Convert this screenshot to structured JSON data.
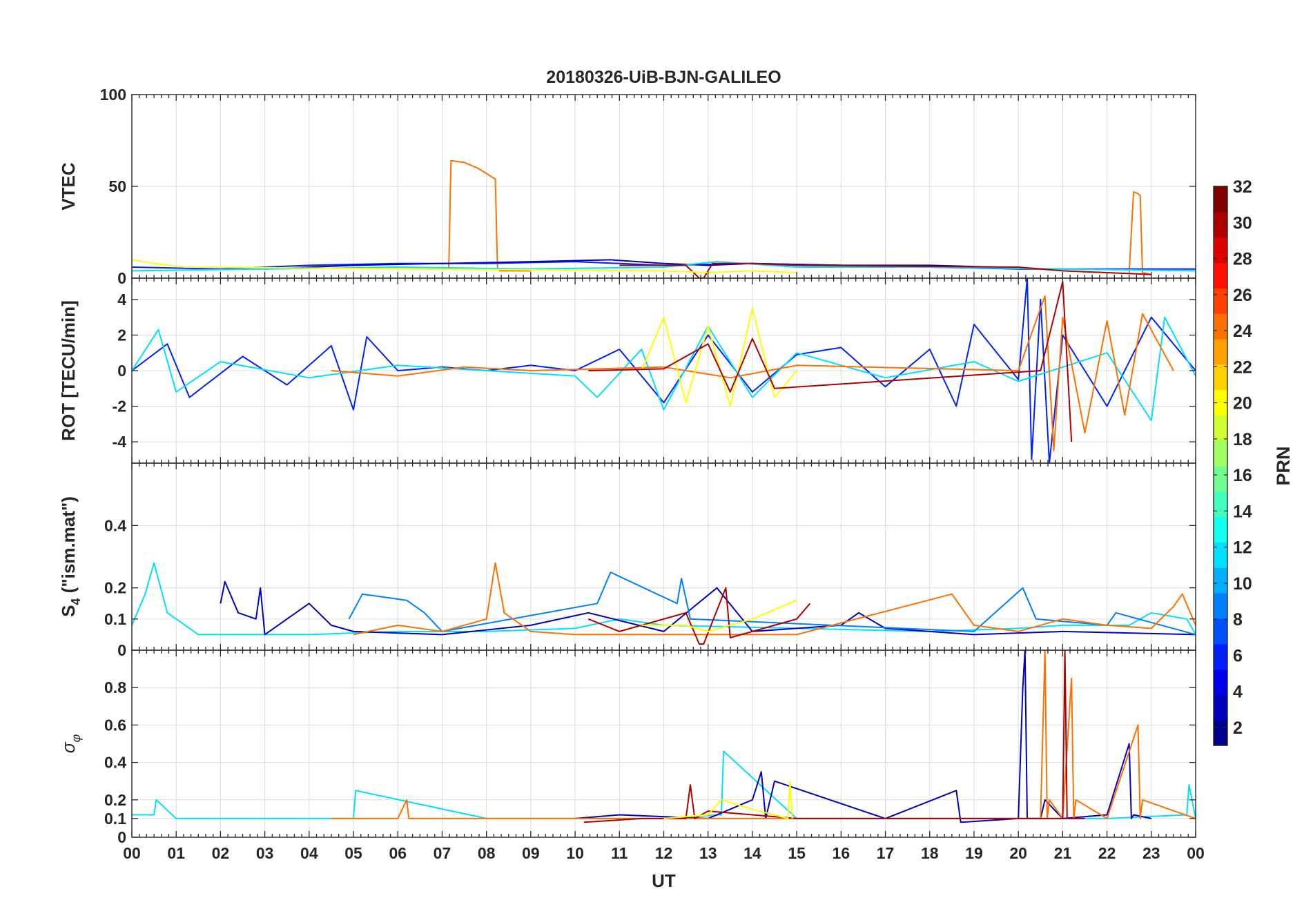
{
  "chart_data": {
    "type": "line",
    "title": "20180326-UiB-BJN-GALILEO",
    "xlabel": "UT",
    "x_ticks": [
      "00",
      "01",
      "02",
      "03",
      "04",
      "05",
      "06",
      "07",
      "08",
      "09",
      "10",
      "11",
      "12",
      "13",
      "14",
      "15",
      "16",
      "17",
      "18",
      "19",
      "20",
      "21",
      "22",
      "23",
      "00"
    ],
    "xlim": [
      0,
      24
    ],
    "colorbar": {
      "label": "PRN",
      "range": [
        1,
        32
      ],
      "ticks": [
        "2",
        "4",
        "6",
        "8",
        "10",
        "12",
        "14",
        "16",
        "18",
        "20",
        "22",
        "24",
        "26",
        "28",
        "30",
        "32"
      ],
      "colors": [
        "#00008f",
        "#0000bf",
        "#0000ef",
        "#0020ff",
        "#0050ff",
        "#0080ff",
        "#00afff",
        "#00dfff",
        "#10ffef",
        "#40ffbf",
        "#70ff8f",
        "#9fff60",
        "#cfff30",
        "#ffff00",
        "#ffcf00",
        "#ff9f00",
        "#ff7000",
        "#ff4000",
        "#ff1000",
        "#df0000",
        "#af0000",
        "#800000"
      ]
    },
    "panels": [
      {
        "name": "vtec",
        "ylabel": "VTEC",
        "ylim": [
          0,
          100
        ],
        "yticks": [
          {
            "v": 0,
            "t": "0"
          },
          {
            "v": 50,
            "t": "50"
          },
          {
            "v": 100,
            "t": "100"
          }
        ],
        "series": [
          {
            "prn": 24,
            "x": [
              7.15,
              7.2,
              7.5,
              7.8,
              8.0,
              8.2,
              8.25,
              8.3,
              9.0
            ],
            "y": [
              5,
              64,
              63,
              60,
              57,
              54,
              5,
              4,
              4
            ]
          },
          {
            "prn": 24,
            "x": [
              22.5,
              22.6,
              22.7,
              22.75,
              22.8,
              23.0
            ],
            "y": [
              3,
              47,
              46,
              45,
              3,
              2
            ]
          },
          {
            "prn": 6,
            "x": [
              0,
              2,
              4,
              6,
              8,
              10,
              12,
              14,
              16,
              18,
              20,
              22,
              24
            ],
            "y": [
              6,
              5,
              7,
              8,
              8,
              9,
              7,
              8,
              7,
              6,
              5,
              5,
              5
            ]
          },
          {
            "prn": 2,
            "x": [
              3,
              5,
              7,
              9,
              10.8,
              12,
              13,
              14,
              16,
              18,
              19.5
            ],
            "y": [
              5,
              7,
              8,
              9,
              10,
              8,
              7,
              8,
              7,
              7,
              6
            ]
          },
          {
            "prn": 12,
            "x": [
              0,
              3,
              6,
              9,
              12,
              13.2,
              15,
              18,
              21,
              24
            ],
            "y": [
              4,
              5,
              6,
              5,
              6,
              9,
              6,
              6,
              5,
              4
            ]
          },
          {
            "prn": 30,
            "x": [
              11,
              12.5,
              12.8,
              12.9,
              13.1,
              14,
              15,
              20,
              21,
              23
            ],
            "y": [
              7,
              7,
              0,
              0,
              8,
              8,
              7,
              6,
              4,
              2
            ]
          },
          {
            "prn": 20,
            "x": [
              0,
              0.5,
              1.2,
              12,
              13,
              14,
              15
            ],
            "y": [
              10,
              8,
              6,
              4,
              3,
              4,
              3
            ]
          }
        ]
      },
      {
        "name": "rot",
        "ylabel": "ROT [TECU/min]",
        "ylim": [
          -5.2,
          5.2
        ],
        "yticks": [
          {
            "v": -4,
            "t": "-4"
          },
          {
            "v": -2,
            "t": "-2"
          },
          {
            "v": 0,
            "t": "0"
          },
          {
            "v": 2,
            "t": "2"
          },
          {
            "v": 4,
            "t": "4"
          }
        ],
        "series": [
          {
            "prn": 6,
            "x": [
              0,
              0.8,
              1.3,
              2.5,
              3.5,
              4.5,
              5.0,
              5.3,
              6.0,
              7.0,
              8.0,
              9.0,
              10.0,
              11.0,
              12.0,
              13.0,
              14.0,
              15.0,
              16.0,
              17.0,
              18.0,
              18.6,
              19.0,
              20.0,
              20.2,
              20.3,
              20.5,
              20.7,
              21.0,
              22.0,
              23.0,
              24.0
            ],
            "y": [
              0,
              1.5,
              -1.5,
              0.8,
              -0.8,
              1.4,
              -2.2,
              1.9,
              0,
              0.2,
              0,
              0.3,
              0,
              1.2,
              -1.8,
              2.0,
              -1.2,
              0.9,
              1.3,
              -0.9,
              1.2,
              -2.0,
              2.6,
              -0.5,
              5.2,
              -5.0,
              4.0,
              -5.2,
              2.0,
              -2.0,
              3.0,
              0
            ]
          },
          {
            "prn": 12,
            "x": [
              0,
              0.6,
              1.0,
              2.0,
              4.0,
              6.0,
              8.0,
              10.0,
              10.5,
              11.5,
              12.0,
              13.0,
              14.0,
              15.0,
              17.0,
              19.0,
              20.0,
              22.0,
              23.0,
              23.3,
              24.0
            ],
            "y": [
              0,
              2.3,
              -1.2,
              0.5,
              -0.4,
              0.3,
              0,
              -0.3,
              -1.5,
              1.2,
              -2.2,
              2.5,
              -1.5,
              1.0,
              -0.4,
              0.5,
              -0.6,
              1.0,
              -2.8,
              3.0,
              -0.3
            ]
          },
          {
            "prn": 24,
            "x": [
              4.5,
              6.0,
              7.5,
              9.0,
              12.0,
              13.5,
              15.0,
              20.0,
              20.6,
              20.8,
              21.0,
              21.5,
              22.0,
              22.4,
              22.8,
              23.5
            ],
            "y": [
              0,
              -0.3,
              0.2,
              0,
              0.2,
              -0.4,
              0.3,
              0,
              4.2,
              -4.5,
              3.0,
              -3.5,
              2.8,
              -2.5,
              3.2,
              0
            ]
          },
          {
            "prn": 20,
            "x": [
              11.5,
              12.0,
              12.5,
              13.0,
              13.5,
              14.0,
              14.5,
              15.0
            ],
            "y": [
              0,
              3.0,
              -1.8,
              2.5,
              -2.0,
              3.5,
              -1.5,
              0
            ]
          },
          {
            "prn": 30,
            "x": [
              10.3,
              12.0,
              13.0,
              13.5,
              14.0,
              14.5,
              20.5,
              21.0,
              21.2
            ],
            "y": [
              0,
              0.1,
              1.5,
              -1.2,
              1.8,
              -1.0,
              0,
              5.0,
              -4.0
            ]
          }
        ]
      },
      {
        "name": "s4",
        "ylabel": "S4 (\"ism.mat\")",
        "ylabel_main": "S",
        "ylabel_sub": "4",
        "ylabel_rest": " (\"ism.mat\")",
        "ylim": [
          0,
          0.6
        ],
        "yticks": [
          {
            "v": 0,
            "t": "0"
          },
          {
            "v": 0.1,
            "t": "0.1"
          },
          {
            "v": 0.2,
            "t": "0.2"
          },
          {
            "v": 0.4,
            "t": "0.4"
          }
        ],
        "series": [
          {
            "prn": 12,
            "x": [
              0,
              0.3,
              0.5,
              0.8,
              1.5,
              4.0,
              6.0,
              8.0,
              10.0,
              11.0,
              12.0,
              15.0,
              18.0,
              20.0,
              21.0,
              22.5,
              23.0,
              23.8,
              24.0
            ],
            "y": [
              0.08,
              0.18,
              0.28,
              0.12,
              0.05,
              0.05,
              0.06,
              0.06,
              0.07,
              0.1,
              0.08,
              0.07,
              0.06,
              0.07,
              0.08,
              0.08,
              0.12,
              0.1,
              0.05
            ]
          },
          {
            "prn": 2,
            "x": [
              2.0,
              2.1,
              2.4,
              2.8,
              2.9,
              3.0,
              4.0,
              4.5,
              5.0,
              7.0,
              9.0,
              10.3,
              12.0,
              13.2,
              14.0,
              16.0,
              16.4,
              17.0,
              19.0,
              21.0,
              24.0
            ],
            "y": [
              0.15,
              0.22,
              0.12,
              0.1,
              0.2,
              0.05,
              0.15,
              0.08,
              0.06,
              0.05,
              0.08,
              0.12,
              0.06,
              0.2,
              0.06,
              0.08,
              0.12,
              0.07,
              0.05,
              0.06,
              0.05
            ]
          },
          {
            "prn": 8,
            "x": [
              4.9,
              5.2,
              6.2,
              6.6,
              7.0,
              10.5,
              10.8,
              12.3,
              12.4,
              12.6,
              19.0,
              20.1,
              20.4,
              22.0,
              22.2,
              24.0
            ],
            "y": [
              0.1,
              0.18,
              0.16,
              0.12,
              0.06,
              0.15,
              0.25,
              0.15,
              0.23,
              0.1,
              0.06,
              0.2,
              0.1,
              0.08,
              0.12,
              0.05
            ]
          },
          {
            "prn": 24,
            "x": [
              5.0,
              6.0,
              7.0,
              8.0,
              8.2,
              8.4,
              9.0,
              10.0,
              15.0,
              18.5,
              19.0,
              20.0,
              21.0,
              22.0,
              23.0,
              23.5,
              23.7,
              24.0
            ],
            "y": [
              0.05,
              0.08,
              0.06,
              0.1,
              0.28,
              0.12,
              0.06,
              0.05,
              0.05,
              0.18,
              0.08,
              0.06,
              0.1,
              0.08,
              0.07,
              0.14,
              0.18,
              0.08
            ]
          },
          {
            "prn": 30,
            "x": [
              10.3,
              11.0,
              12.5,
              12.8,
              12.9,
              13.4,
              13.5,
              14.5,
              15.0,
              15.3
            ],
            "y": [
              0.1,
              0.06,
              0.12,
              0.02,
              0.02,
              0.2,
              0.04,
              0.08,
              0.1,
              0.15
            ]
          },
          {
            "prn": 20,
            "x": [
              11.5,
              12.5,
              13.0,
              14.0,
              15.0
            ],
            "y": [
              0.08,
              0.08,
              0.06,
              0.1,
              0.16
            ]
          }
        ]
      },
      {
        "name": "sigma",
        "ylabel": "σφ",
        "ylabel_main": "σ",
        "ylabel_sub": "φ",
        "ylim": [
          0,
          1.0
        ],
        "yticks": [
          {
            "v": 0,
            "t": "0"
          },
          {
            "v": 0.1,
            "t": "0.1"
          },
          {
            "v": 0.2,
            "t": "0.2"
          },
          {
            "v": 0.4,
            "t": "0.4"
          },
          {
            "v": 0.6,
            "t": "0.6"
          },
          {
            "v": 0.8,
            "t": "0.8"
          }
        ],
        "series": [
          {
            "prn": 12,
            "x": [
              0,
              0.5,
              0.55,
              1.0,
              3.0,
              5.0,
              5.05,
              8.0,
              12.0,
              13.3,
              13.35,
              15.0,
              20.0,
              22.0,
              23.8,
              23.85,
              24.0
            ],
            "y": [
              0.12,
              0.12,
              0.2,
              0.1,
              0.1,
              0.1,
              0.25,
              0.1,
              0.1,
              0.12,
              0.46,
              0.1,
              0.1,
              0.1,
              0.12,
              0.28,
              0.1
            ]
          },
          {
            "prn": 2,
            "x": [
              10.0,
              11.0,
              13.0,
              14.0,
              14.2,
              14.3,
              14.5,
              17.0,
              18.6,
              18.7,
              20.0,
              20.1,
              20.15,
              20.2,
              20.5,
              20.6,
              21.0,
              22.0,
              22.5,
              22.55,
              22.6,
              23.0
            ],
            "y": [
              0.1,
              0.12,
              0.1,
              0.2,
              0.35,
              0.1,
              0.3,
              0.1,
              0.25,
              0.08,
              0.1,
              0.8,
              1.0,
              0.1,
              0.1,
              0.2,
              0.1,
              0.12,
              0.5,
              0.1,
              0.12,
              0.1
            ]
          },
          {
            "prn": 24,
            "x": [
              4.5,
              6.0,
              6.2,
              6.25,
              9.0,
              12.0,
              20.5,
              20.6,
              20.65,
              20.7,
              21.0,
              21.2,
              21.25,
              21.3,
              22.0,
              22.7,
              22.75,
              22.8,
              24.0
            ],
            "y": [
              0.1,
              0.1,
              0.2,
              0.1,
              0.1,
              0.1,
              0.1,
              1.0,
              0.1,
              0.2,
              0.1,
              0.85,
              0.1,
              0.2,
              0.1,
              0.6,
              0.1,
              0.2,
              0.1
            ]
          },
          {
            "prn": 30,
            "x": [
              10.2,
              11.5,
              12.5,
              12.6,
              12.7,
              13.0,
              14.0,
              15.0,
              20.5,
              21.0,
              21.05,
              21.1,
              21.5
            ],
            "y": [
              0.08,
              0.1,
              0.1,
              0.28,
              0.1,
              0.14,
              0.12,
              0.1,
              0.1,
              0.1,
              1.0,
              0.1,
              0.1
            ]
          },
          {
            "prn": 20,
            "x": [
              12.0,
              13.0,
              13.3,
              14.0,
              14.8,
              14.85,
              14.9
            ],
            "y": [
              0.1,
              0.12,
              0.2,
              0.15,
              0.1,
              0.3,
              0.1
            ]
          }
        ]
      }
    ]
  }
}
